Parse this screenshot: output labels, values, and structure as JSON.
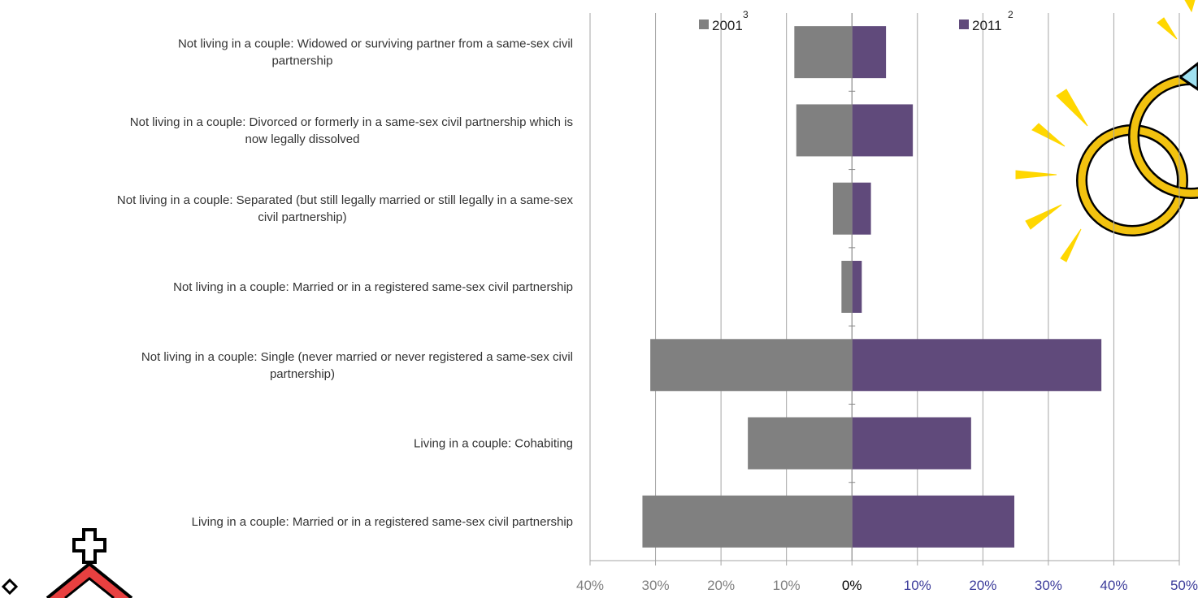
{
  "chart_data": {
    "type": "bar",
    "orientation": "horizontal-diverging",
    "categories": [
      [
        "Not living in a couple: Widowed or surviving partner from a same-sex civil",
        "partnership"
      ],
      [
        "Not living in a couple: Divorced or formerly in a same-sex civil partnership which is",
        "now legally dissolved"
      ],
      [
        "Not living in a couple: Separated (but still legally married or still legally in a same-sex",
        "civil partnership)"
      ],
      [
        "Not living in a couple: Married or in a registered same-sex civil partnership"
      ],
      [
        "Not living in a couple: Single (never married or never registered a same-sex civil",
        "partnership)"
      ],
      [
        "Living in a couple: Cohabiting"
      ],
      [
        "Living in a couple: Married or in a registered same-sex civil partnership"
      ]
    ],
    "series": [
      {
        "name": "2001",
        "superscript": "3",
        "color": "#808080",
        "direction": "left",
        "values": [
          8.8,
          8.5,
          2.9,
          1.6,
          30.8,
          15.9,
          32.0
        ]
      },
      {
        "name": "2011",
        "superscript": "2",
        "color": "#604a7b",
        "direction": "right",
        "values": [
          5.2,
          9.3,
          2.9,
          1.5,
          38.1,
          18.2,
          24.8
        ]
      }
    ],
    "xlim": [
      -40,
      50
    ],
    "ticks": [
      {
        "value": -40,
        "label": "40%",
        "color": "#808080"
      },
      {
        "value": -30,
        "label": "30%",
        "color": "#808080"
      },
      {
        "value": -20,
        "label": "20%",
        "color": "#808080"
      },
      {
        "value": -10,
        "label": "10%",
        "color": "#808080"
      },
      {
        "value": 0,
        "label": "0%",
        "color": "#000000"
      },
      {
        "value": 10,
        "label": "10%",
        "color": "#3b3b9a"
      },
      {
        "value": 20,
        "label": "20%",
        "color": "#3b3b9a"
      },
      {
        "value": 30,
        "label": "30%",
        "color": "#3b3b9a"
      },
      {
        "value": 40,
        "label": "40%",
        "color": "#3b3b9a"
      },
      {
        "value": 50,
        "label": "50%",
        "color": "#3b3b9a"
      }
    ],
    "grid": true,
    "legend_position": "top",
    "grid_color": "#a6a6a6",
    "decorations": [
      "wedding-rings-clipart",
      "church-clipart"
    ]
  }
}
